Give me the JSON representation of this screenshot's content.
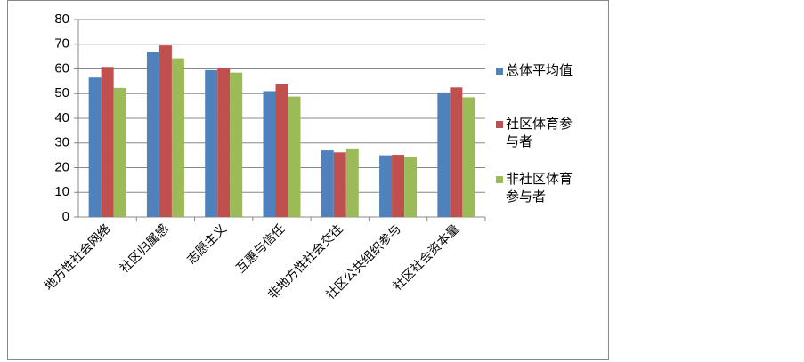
{
  "chart_data": {
    "type": "bar",
    "categories": [
      "地方性社会网络",
      "社区归属感",
      "志愿主义",
      "互惠与信任",
      "非地方性社会交往",
      "社区公共组织参与",
      "社区社会资本量"
    ],
    "series": [
      {
        "name": "总体平均值",
        "color": "#4f81bd",
        "values": [
          56.5,
          67,
          59.5,
          51,
          27,
          25,
          50.5
        ]
      },
      {
        "name": "社区体育参与者",
        "color": "#c0504d",
        "values": [
          60.8,
          69.5,
          60.5,
          53.7,
          26.2,
          25.2,
          52.5
        ]
      },
      {
        "name": "非社区体育参与者",
        "color": "#9bbb59",
        "values": [
          52.3,
          64.3,
          58.5,
          48.8,
          27.8,
          24.5,
          48.5
        ]
      }
    ],
    "ylim": [
      0,
      80
    ],
    "yticks": [
      0,
      10,
      20,
      30,
      40,
      50,
      60,
      70,
      80
    ],
    "grid": true,
    "legend": "right"
  }
}
